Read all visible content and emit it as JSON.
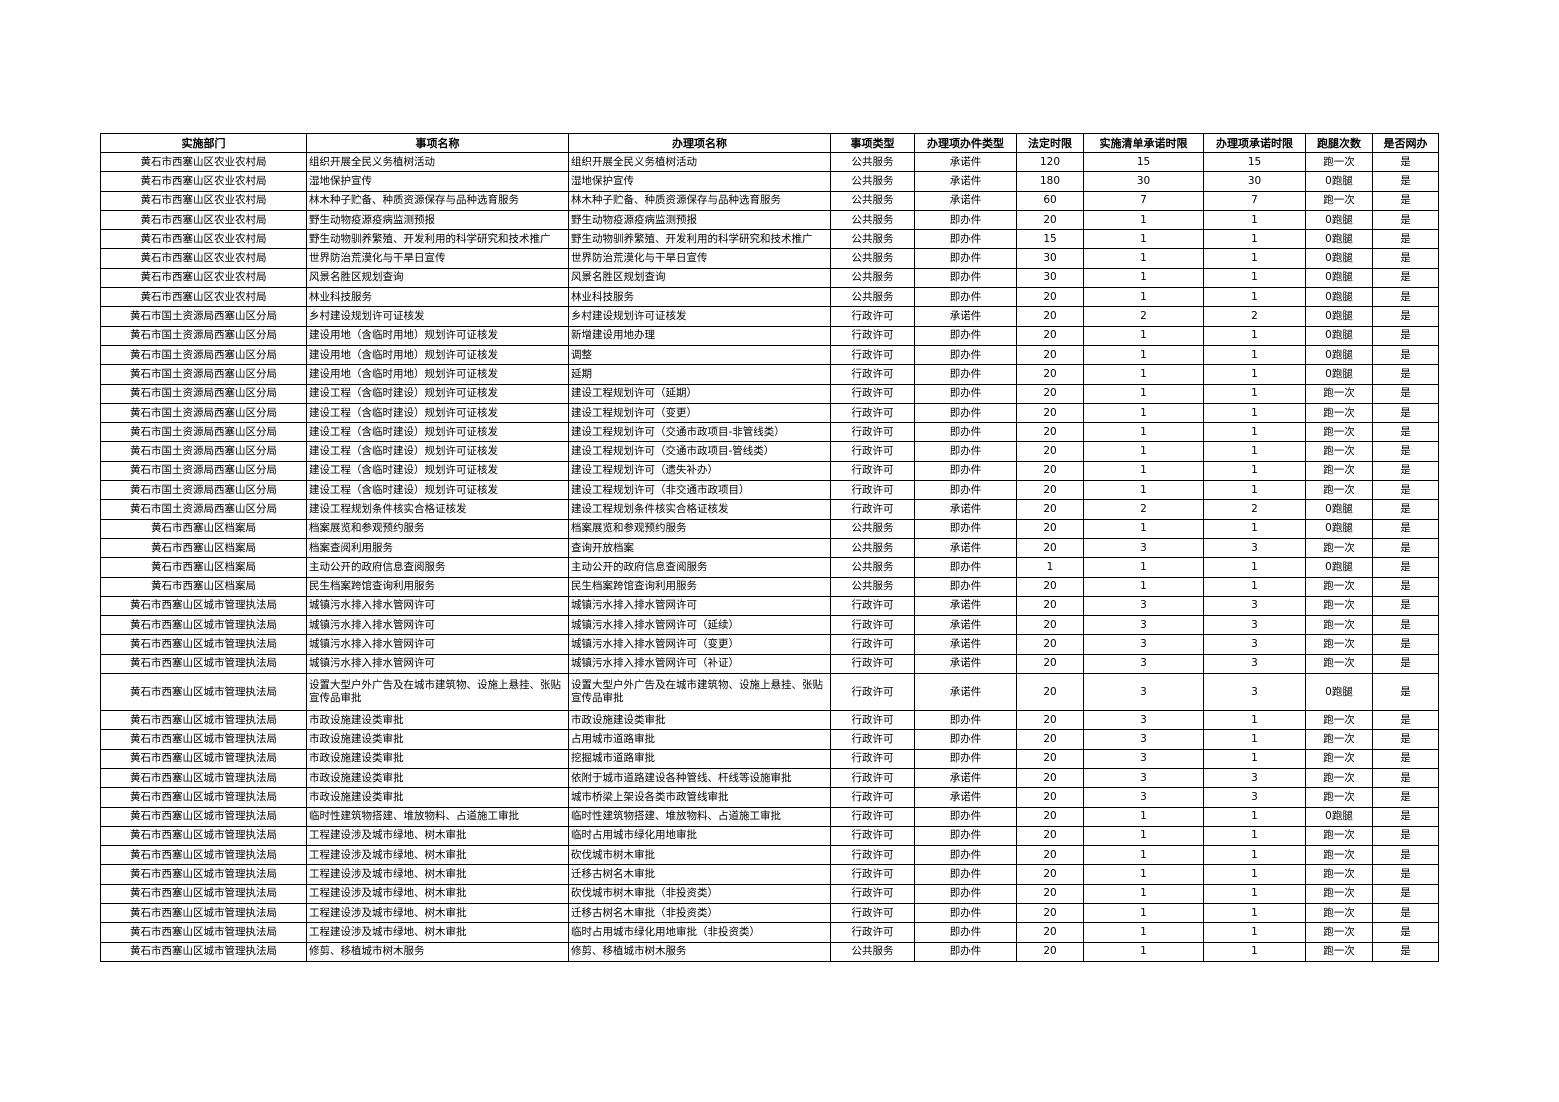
{
  "table": {
    "headers": [
      "实施部门",
      "事项名称",
      "办理项名称",
      "事项类型",
      "办理项办件类型",
      "法定时限",
      "实施清单承诺时限",
      "办理项承诺时限",
      "跑腿次数",
      "是否网办"
    ],
    "rows": [
      [
        "黄石市西塞山区农业农村局",
        "组织开展全民义务植树活动",
        "组织开展全民义务植树活动",
        "公共服务",
        "承诺件",
        "120",
        "15",
        "15",
        "跑一次",
        "是"
      ],
      [
        "黄石市西塞山区农业农村局",
        "湿地保护宣传",
        "湿地保护宣传",
        "公共服务",
        "承诺件",
        "180",
        "30",
        "30",
        "0跑腿",
        "是"
      ],
      [
        "黄石市西塞山区农业农村局",
        "林木种子贮备、种质资源保存与品种选育服务",
        "林木种子贮备、种质资源保存与品种选育服务",
        "公共服务",
        "承诺件",
        "60",
        "7",
        "7",
        "跑一次",
        "是"
      ],
      [
        "黄石市西塞山区农业农村局",
        "野生动物疫源疫病监测预报",
        "野生动物疫源疫病监测预报",
        "公共服务",
        "即办件",
        "20",
        "1",
        "1",
        "0跑腿",
        "是"
      ],
      [
        "黄石市西塞山区农业农村局",
        "野生动物驯养繁殖、开发利用的科学研究和技术推广",
        "野生动物驯养繁殖、开发利用的科学研究和技术推广",
        "公共服务",
        "即办件",
        "15",
        "1",
        "1",
        "0跑腿",
        "是"
      ],
      [
        "黄石市西塞山区农业农村局",
        "世界防治荒漠化与干旱日宣传",
        "世界防治荒漠化与干旱日宣传",
        "公共服务",
        "即办件",
        "30",
        "1",
        "1",
        "0跑腿",
        "是"
      ],
      [
        "黄石市西塞山区农业农村局",
        "风景名胜区规划查询",
        "风景名胜区规划查询",
        "公共服务",
        "即办件",
        "30",
        "1",
        "1",
        "0跑腿",
        "是"
      ],
      [
        "黄石市西塞山区农业农村局",
        "林业科技服务",
        "林业科技服务",
        "公共服务",
        "即办件",
        "20",
        "1",
        "1",
        "0跑腿",
        "是"
      ],
      [
        "黄石市国土资源局西塞山区分局",
        "乡村建设规划许可证核发",
        "乡村建设规划许可证核发",
        "行政许可",
        "承诺件",
        "20",
        "2",
        "2",
        "0跑腿",
        "是"
      ],
      [
        "黄石市国土资源局西塞山区分局",
        "建设用地（含临时用地）规划许可证核发",
        "新增建设用地办理",
        "行政许可",
        "即办件",
        "20",
        "1",
        "1",
        "0跑腿",
        "是"
      ],
      [
        "黄石市国土资源局西塞山区分局",
        "建设用地（含临时用地）规划许可证核发",
        "调整",
        "行政许可",
        "即办件",
        "20",
        "1",
        "1",
        "0跑腿",
        "是"
      ],
      [
        "黄石市国土资源局西塞山区分局",
        "建设用地（含临时用地）规划许可证核发",
        "延期",
        "行政许可",
        "即办件",
        "20",
        "1",
        "1",
        "0跑腿",
        "是"
      ],
      [
        "黄石市国土资源局西塞山区分局",
        "建设工程（含临时建设）规划许可证核发",
        "建设工程规划许可（延期）",
        "行政许可",
        "即办件",
        "20",
        "1",
        "1",
        "跑一次",
        "是"
      ],
      [
        "黄石市国土资源局西塞山区分局",
        "建设工程（含临时建设）规划许可证核发",
        "建设工程规划许可（变更）",
        "行政许可",
        "即办件",
        "20",
        "1",
        "1",
        "跑一次",
        "是"
      ],
      [
        "黄石市国土资源局西塞山区分局",
        "建设工程（含临时建设）规划许可证核发",
        "建设工程规划许可（交通市政项目-非管线类）",
        "行政许可",
        "即办件",
        "20",
        "1",
        "1",
        "跑一次",
        "是"
      ],
      [
        "黄石市国土资源局西塞山区分局",
        "建设工程（含临时建设）规划许可证核发",
        "建设工程规划许可（交通市政项目-管线类）",
        "行政许可",
        "即办件",
        "20",
        "1",
        "1",
        "跑一次",
        "是"
      ],
      [
        "黄石市国土资源局西塞山区分局",
        "建设工程（含临时建设）规划许可证核发",
        "建设工程规划许可（遗失补办）",
        "行政许可",
        "即办件",
        "20",
        "1",
        "1",
        "跑一次",
        "是"
      ],
      [
        "黄石市国土资源局西塞山区分局",
        "建设工程（含临时建设）规划许可证核发",
        "建设工程规划许可（非交通市政项目）",
        "行政许可",
        "即办件",
        "20",
        "1",
        "1",
        "跑一次",
        "是"
      ],
      [
        "黄石市国土资源局西塞山区分局",
        "建设工程规划条件核实合格证核发",
        "建设工程规划条件核实合格证核发",
        "行政许可",
        "承诺件",
        "20",
        "2",
        "2",
        "0跑腿",
        "是"
      ],
      [
        "黄石市西塞山区档案局",
        "档案展览和参观预约服务",
        "档案展览和参观预约服务",
        "公共服务",
        "即办件",
        "20",
        "1",
        "1",
        "0跑腿",
        "是"
      ],
      [
        "黄石市西塞山区档案局",
        "档案查阅利用服务",
        "查询开放档案",
        "公共服务",
        "承诺件",
        "20",
        "3",
        "3",
        "跑一次",
        "是"
      ],
      [
        "黄石市西塞山区档案局",
        "主动公开的政府信息查阅服务",
        "主动公开的政府信息查阅服务",
        "公共服务",
        "即办件",
        "1",
        "1",
        "1",
        "0跑腿",
        "是"
      ],
      [
        "黄石市西塞山区档案局",
        "民生档案跨馆查询利用服务",
        "民生档案跨馆查询利用服务",
        "公共服务",
        "即办件",
        "20",
        "1",
        "1",
        "跑一次",
        "是"
      ],
      [
        "黄石市西塞山区城市管理执法局",
        "城镇污水排入排水管网许可",
        "城镇污水排入排水管网许可",
        "行政许可",
        "承诺件",
        "20",
        "3",
        "3",
        "跑一次",
        "是"
      ],
      [
        "黄石市西塞山区城市管理执法局",
        "城镇污水排入排水管网许可",
        "城镇污水排入排水管网许可（延续）",
        "行政许可",
        "承诺件",
        "20",
        "3",
        "3",
        "跑一次",
        "是"
      ],
      [
        "黄石市西塞山区城市管理执法局",
        "城镇污水排入排水管网许可",
        "城镇污水排入排水管网许可（变更）",
        "行政许可",
        "承诺件",
        "20",
        "3",
        "3",
        "跑一次",
        "是"
      ],
      [
        "黄石市西塞山区城市管理执法局",
        "城镇污水排入排水管网许可",
        "城镇污水排入排水管网许可（补证）",
        "行政许可",
        "承诺件",
        "20",
        "3",
        "3",
        "跑一次",
        "是"
      ],
      [
        "黄石市西塞山区城市管理执法局",
        "设置大型户外广告及在城市建筑物、设施上悬挂、张贴宣传品审批",
        "设置大型户外广告及在城市建筑物、设施上悬挂、张贴宣传品审批",
        "行政许可",
        "承诺件",
        "20",
        "3",
        "3",
        "0跑腿",
        "是"
      ],
      [
        "黄石市西塞山区城市管理执法局",
        "市政设施建设类审批",
        "市政设施建设类审批",
        "行政许可",
        "即办件",
        "20",
        "3",
        "1",
        "跑一次",
        "是"
      ],
      [
        "黄石市西塞山区城市管理执法局",
        "市政设施建设类审批",
        "占用城市道路审批",
        "行政许可",
        "即办件",
        "20",
        "3",
        "1",
        "跑一次",
        "是"
      ],
      [
        "黄石市西塞山区城市管理执法局",
        "市政设施建设类审批",
        "挖掘城市道路审批",
        "行政许可",
        "即办件",
        "20",
        "3",
        "1",
        "跑一次",
        "是"
      ],
      [
        "黄石市西塞山区城市管理执法局",
        "市政设施建设类审批",
        "依附于城市道路建设各种管线、杆线等设施审批",
        "行政许可",
        "承诺件",
        "20",
        "3",
        "3",
        "跑一次",
        "是"
      ],
      [
        "黄石市西塞山区城市管理执法局",
        "市政设施建设类审批",
        "城市桥梁上架设各类市政管线审批",
        "行政许可",
        "承诺件",
        "20",
        "3",
        "3",
        "跑一次",
        "是"
      ],
      [
        "黄石市西塞山区城市管理执法局",
        "临时性建筑物搭建、堆放物料、占道施工审批",
        "临时性建筑物搭建、堆放物料、占道施工审批",
        "行政许可",
        "即办件",
        "20",
        "1",
        "1",
        "0跑腿",
        "是"
      ],
      [
        "黄石市西塞山区城市管理执法局",
        "工程建设涉及城市绿地、树木审批",
        "临时占用城市绿化用地审批",
        "行政许可",
        "即办件",
        "20",
        "1",
        "1",
        "跑一次",
        "是"
      ],
      [
        "黄石市西塞山区城市管理执法局",
        "工程建设涉及城市绿地、树木审批",
        "砍伐城市树木审批",
        "行政许可",
        "即办件",
        "20",
        "1",
        "1",
        "跑一次",
        "是"
      ],
      [
        "黄石市西塞山区城市管理执法局",
        "工程建设涉及城市绿地、树木审批",
        "迁移古树名木审批",
        "行政许可",
        "即办件",
        "20",
        "1",
        "1",
        "跑一次",
        "是"
      ],
      [
        "黄石市西塞山区城市管理执法局",
        "工程建设涉及城市绿地、树木审批",
        "砍伐城市树木审批（非投资类）",
        "行政许可",
        "即办件",
        "20",
        "1",
        "1",
        "跑一次",
        "是"
      ],
      [
        "黄石市西塞山区城市管理执法局",
        "工程建设涉及城市绿地、树木审批",
        "迁移古树名木审批（非投资类）",
        "行政许可",
        "即办件",
        "20",
        "1",
        "1",
        "跑一次",
        "是"
      ],
      [
        "黄石市西塞山区城市管理执法局",
        "工程建设涉及城市绿地、树木审批",
        "临时占用城市绿化用地审批（非投资类）",
        "行政许可",
        "即办件",
        "20",
        "1",
        "1",
        "跑一次",
        "是"
      ],
      [
        "黄石市西塞山区城市管理执法局",
        "修剪、移植城市树木服务",
        "修剪、移植城市树木服务",
        "公共服务",
        "即办件",
        "20",
        "1",
        "1",
        "跑一次",
        "是"
      ]
    ]
  }
}
